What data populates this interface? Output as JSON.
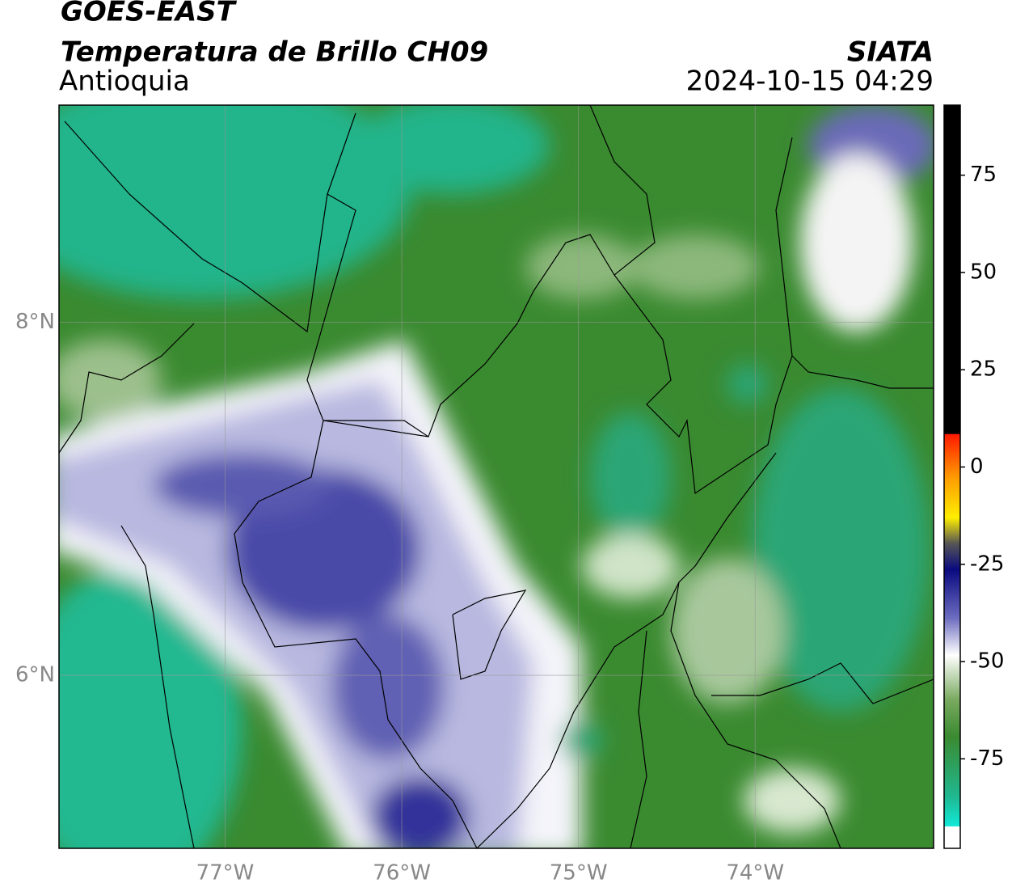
{
  "header": {
    "title": "GOES-EAST",
    "subtitle": "Temperatura de Brillo CH09",
    "region": "Antioquia",
    "source": "SIATA",
    "datetime": "2024-10-15 04:29"
  },
  "map": {
    "lonlim": [
      -77.94,
      -72.99
    ],
    "latlim": [
      5.02,
      9.23
    ],
    "lon_ticks": [
      {
        "value": -77,
        "label": "77°W"
      },
      {
        "value": -76,
        "label": "76°W"
      },
      {
        "value": -75,
        "label": "75°W"
      },
      {
        "value": -74,
        "label": "74°W"
      }
    ],
    "lat_ticks": [
      {
        "value": 8,
        "label": "8°N"
      },
      {
        "value": 6,
        "label": "6°N"
      }
    ],
    "grid": true
  },
  "colorbar": {
    "lim": [
      -98,
      93
    ],
    "ticks": [
      75,
      50,
      25,
      0,
      -25,
      -50,
      -75
    ]
  }
}
